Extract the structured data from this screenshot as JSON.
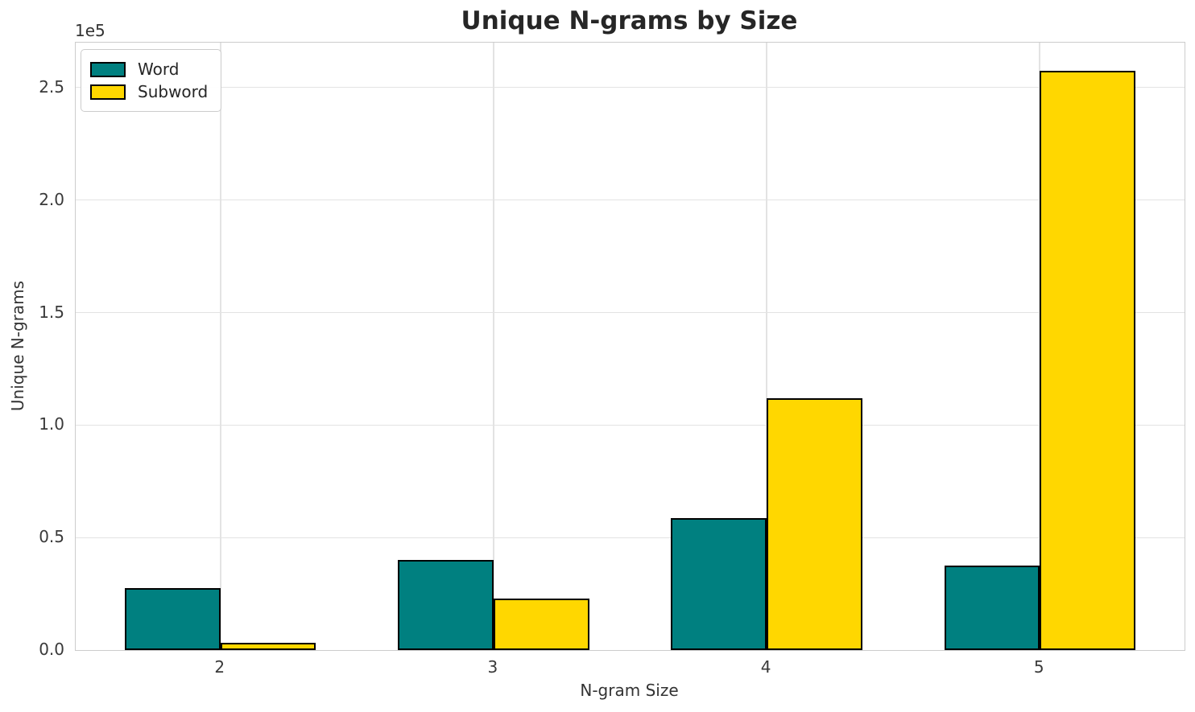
{
  "chart_data": {
    "type": "bar",
    "title": "Unique N-grams by Size",
    "xlabel": "N-gram Size",
    "ylabel": "Unique N-grams",
    "offset_text": "1e5",
    "categories": [
      "2",
      "3",
      "4",
      "5"
    ],
    "series": [
      {
        "name": "Word",
        "color": "#008080",
        "values": [
          27500,
          40000,
          58700,
          37500
        ]
      },
      {
        "name": "Subword",
        "color": "#FFD700",
        "values": [
          3200,
          23000,
          112000,
          257500
        ]
      }
    ],
    "bar_edge_color": "#000000",
    "grid_color": "#e3e3e3",
    "ylim": [
      0,
      270000
    ],
    "yticks": [
      {
        "value": 0,
        "label": "0.0"
      },
      {
        "value": 50000,
        "label": "0.5"
      },
      {
        "value": 100000,
        "label": "1.0"
      },
      {
        "value": 150000,
        "label": "1.5"
      },
      {
        "value": 200000,
        "label": "2.0"
      },
      {
        "value": 250000,
        "label": "2.5"
      }
    ],
    "grid": true,
    "legend_position": "upper-left"
  }
}
